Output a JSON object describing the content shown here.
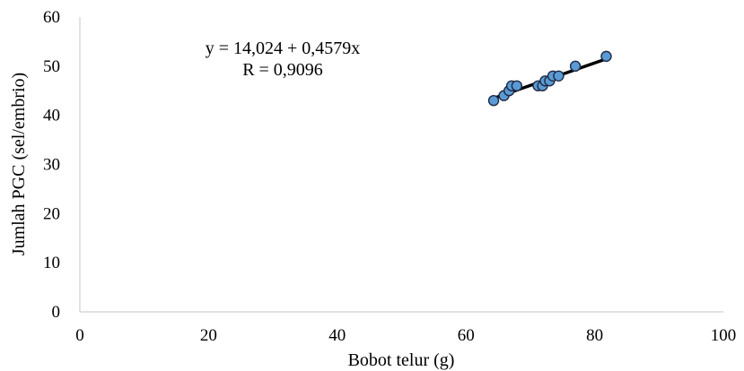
{
  "chart_data": {
    "type": "scatter",
    "title": "",
    "xlabel": "Bobot telur (g)",
    "ylabel": "Jumlah PGC (sel/embrio)",
    "xlim": [
      0,
      100
    ],
    "ylim": [
      0,
      60
    ],
    "xticks": [
      "0",
      "20",
      "40",
      "60",
      "80",
      "100"
    ],
    "yticks": [
      "0",
      "10",
      "20",
      "30",
      "40",
      "50",
      "60"
    ],
    "grid": false,
    "legend": "none",
    "series": [
      {
        "points": [
          {
            "x": 64.3,
            "y": 43
          },
          {
            "x": 65.9,
            "y": 44
          },
          {
            "x": 66.7,
            "y": 45
          },
          {
            "x": 67.1,
            "y": 46
          },
          {
            "x": 67.9,
            "y": 46
          },
          {
            "x": 71.2,
            "y": 46
          },
          {
            "x": 71.9,
            "y": 46
          },
          {
            "x": 72.3,
            "y": 47
          },
          {
            "x": 73.0,
            "y": 47
          },
          {
            "x": 73.5,
            "y": 48
          },
          {
            "x": 74.4,
            "y": 48
          },
          {
            "x": 77.0,
            "y": 50
          },
          {
            "x": 81.8,
            "y": 52
          }
        ]
      }
    ],
    "trendline": {
      "intercept": 14.024,
      "slope": 0.4579,
      "x_range": [
        64.3,
        81.8
      ]
    },
    "annotations": {
      "equation": "y = 14,024 + 0,4579x",
      "r_value": "R = 0,9096"
    },
    "colors": {
      "marker_fill": "#5b9bd5",
      "marker_stroke": "#1f2a44",
      "trendline": "#000000",
      "axis": "#d9d9d9"
    }
  }
}
